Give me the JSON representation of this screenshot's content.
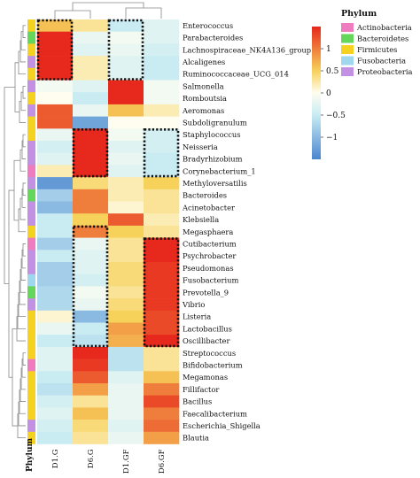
{
  "chart_data": {
    "type": "heatmap",
    "title": "",
    "columns": [
      "D1.G",
      "D6.G",
      "D1.GF",
      "D6.GF"
    ],
    "column_axis_label": "",
    "rows": [
      {
        "taxon": "Enterococcus",
        "phylum": "Firmicutes",
        "values": [
          0.6,
          0.3,
          -0.5,
          -0.3
        ]
      },
      {
        "taxon": "Parabacteroides",
        "phylum": "Bacteroidetes",
        "values": [
          1.5,
          -0.2,
          -0.1,
          -0.3
        ]
      },
      {
        "taxon": "Lachnospiraceae_NK4A136_group",
        "phylum": "Firmicutes",
        "values": [
          1.5,
          -0.3,
          -0.2,
          -0.4
        ]
      },
      {
        "taxon": "Alcaligenes",
        "phylum": "Proteobacteria",
        "values": [
          1.5,
          0.2,
          -0.3,
          -0.5
        ]
      },
      {
        "taxon": "Ruminococcaceae_UCG_014",
        "phylum": "Firmicutes",
        "values": [
          1.5,
          0.2,
          -0.3,
          -0.5
        ]
      },
      {
        "taxon": "Salmonella",
        "phylum": "Proteobacteria",
        "values": [
          -0.1,
          -0.3,
          1.5,
          -0.1
        ]
      },
      {
        "taxon": "Romboutsia",
        "phylum": "Firmicutes",
        "values": [
          0.0,
          -0.5,
          1.5,
          -0.1
        ]
      },
      {
        "taxon": "Aeromonas",
        "phylum": "Proteobacteria",
        "values": [
          1.2,
          -0.2,
          0.6,
          0.2
        ]
      },
      {
        "taxon": "Subdoligranulum",
        "phylum": "Firmicutes",
        "values": [
          1.2,
          -1.2,
          0.0,
          0.0
        ]
      },
      {
        "taxon": "Staphylococcus",
        "phylum": "Firmicutes",
        "values": [
          -0.2,
          1.5,
          -0.1,
          -0.4
        ]
      },
      {
        "taxon": "Neisseria",
        "phylum": "Proteobacteria",
        "values": [
          -0.4,
          1.5,
          -0.3,
          -0.4
        ]
      },
      {
        "taxon": "Bradyrhizobium",
        "phylum": "Proteobacteria",
        "values": [
          -0.3,
          1.5,
          -0.2,
          -0.5
        ]
      },
      {
        "taxon": "Corynebacterium_1",
        "phylum": "Actinobacteria",
        "values": [
          0.2,
          1.5,
          -0.3,
          -0.5
        ]
      },
      {
        "taxon": "Methyloversatilis",
        "phylum": "Proteobacteria",
        "values": [
          -1.3,
          0.4,
          0.2,
          0.5
        ]
      },
      {
        "taxon": "Bacteroides",
        "phylum": "Bacteroidetes",
        "values": [
          -0.8,
          1.0,
          0.2,
          0.3
        ]
      },
      {
        "taxon": "Acinetobacter",
        "phylum": "Proteobacteria",
        "values": [
          -1.0,
          1.0,
          0.1,
          0.3
        ]
      },
      {
        "taxon": "Klebsiella",
        "phylum": "Proteobacteria",
        "values": [
          -0.5,
          0.5,
          1.2,
          0.2
        ]
      },
      {
        "taxon": "Megasphaera",
        "phylum": "Firmicutes",
        "values": [
          -0.5,
          1.0,
          0.5,
          0.3
        ]
      },
      {
        "taxon": "Cutibacterium",
        "phylum": "Actinobacteria",
        "values": [
          -0.8,
          -0.2,
          0.3,
          1.5
        ]
      },
      {
        "taxon": "Psychrobacter",
        "phylum": "Proteobacteria",
        "values": [
          -0.5,
          -0.3,
          0.3,
          1.5
        ]
      },
      {
        "taxon": "Pseudomonas",
        "phylum": "Proteobacteria",
        "values": [
          -0.8,
          -0.3,
          0.4,
          1.4
        ]
      },
      {
        "taxon": "Fusobacterium",
        "phylum": "Fusobacteria",
        "values": [
          -0.8,
          -0.4,
          0.4,
          1.4
        ]
      },
      {
        "taxon": "Prevotella_9",
        "phylum": "Bacteroidetes",
        "values": [
          -0.7,
          -0.1,
          0.3,
          1.4
        ]
      },
      {
        "taxon": "Vibrio",
        "phylum": "Proteobacteria",
        "values": [
          -0.7,
          -0.2,
          0.4,
          1.4
        ]
      },
      {
        "taxon": "Listeria",
        "phylum": "Firmicutes",
        "values": [
          0.1,
          -1.0,
          0.5,
          1.3
        ]
      },
      {
        "taxon": "Lactobacillus",
        "phylum": "Firmicutes",
        "values": [
          -0.2,
          -0.5,
          0.8,
          1.3
        ]
      },
      {
        "taxon": "Oscillibacter",
        "phylum": "Firmicutes",
        "values": [
          -0.5,
          -0.6,
          0.7,
          1.5
        ]
      },
      {
        "taxon": "Streptococcus",
        "phylum": "Firmicutes",
        "values": [
          -0.3,
          1.5,
          -0.6,
          0.3
        ]
      },
      {
        "taxon": "Bifidobacterium",
        "phylum": "Actinobacteria",
        "values": [
          -0.3,
          1.4,
          -0.6,
          0.3
        ]
      },
      {
        "taxon": "Megamonas",
        "phylum": "Firmicutes",
        "values": [
          -0.5,
          1.2,
          -0.3,
          0.6
        ]
      },
      {
        "taxon": "Fillifactor",
        "phylum": "Firmicutes",
        "values": [
          -0.6,
          0.8,
          -0.2,
          1.0
        ]
      },
      {
        "taxon": "Bacillus",
        "phylum": "Firmicutes",
        "values": [
          -0.4,
          0.3,
          -0.2,
          1.3
        ]
      },
      {
        "taxon": "Faecalibacterium",
        "phylum": "Firmicutes",
        "values": [
          -0.3,
          0.6,
          -0.2,
          1.0
        ]
      },
      {
        "taxon": "Escherichia_Shigella",
        "phylum": "Proteobacteria",
        "values": [
          -0.4,
          0.4,
          -0.3,
          1.1
        ]
      },
      {
        "taxon": "Blautia",
        "phylum": "Firmicutes",
        "values": [
          -0.5,
          0.3,
          -0.2,
          0.8
        ]
      }
    ],
    "highlight_boxes": [
      {
        "rows": [
          "Enterococcus",
          "Ruminococcaceae_UCG_014"
        ],
        "columns": [
          "D1.G",
          "D1.G"
        ]
      },
      {
        "rows": [
          "Enterococcus",
          "Ruminococcaceae_UCG_014"
        ],
        "columns": [
          "D1.GF",
          "D1.GF"
        ]
      },
      {
        "rows": [
          "Staphylococcus",
          "Corynebacterium_1"
        ],
        "columns": [
          "D6.G",
          "D6.G"
        ]
      },
      {
        "rows": [
          "Staphylococcus",
          "Corynebacterium_1"
        ],
        "columns": [
          "D6.GF",
          "D6.GF"
        ]
      },
      {
        "rows": [
          "Megasphaera",
          "Oscillibacter"
        ],
        "columns": [
          "D6.G",
          "D6.G"
        ]
      },
      {
        "rows": [
          "Cutibacterium",
          "Oscillibacter"
        ],
        "columns": [
          "D6.GF",
          "D6.GF"
        ]
      }
    ],
    "phylum_annotation_label": "Phylum",
    "legend": {
      "title": "Phylum",
      "placement": "right",
      "entries": [
        {
          "name": "Actinobacteria",
          "color": "#f07cc0"
        },
        {
          "name": "Bacteroidetes",
          "color": "#64d65a"
        },
        {
          "name": "Firmicutes",
          "color": "#f5d21f"
        },
        {
          "name": "Fusobacteria",
          "color": "#9fd8ee"
        },
        {
          "name": "Proteobacteria",
          "color": "#c291e3"
        }
      ]
    },
    "color_scale": {
      "range": [
        -1.5,
        1.5
      ],
      "ticks": [
        {
          "value": 1,
          "label": "1"
        },
        {
          "value": 0.5,
          "label": "0.5"
        },
        {
          "value": 0,
          "label": "0"
        },
        {
          "value": -0.5,
          "label": "−0.5"
        },
        {
          "value": -1,
          "label": "−1"
        }
      ],
      "colors": {
        "low": "#4a86cf",
        "mid_low": "#c9ecf3",
        "mid": "#fefdf0",
        "mid_high": "#f7d25a",
        "high": "#e7281c"
      }
    },
    "dendrogram": {
      "row": true,
      "column": true
    },
    "grid": false
  }
}
